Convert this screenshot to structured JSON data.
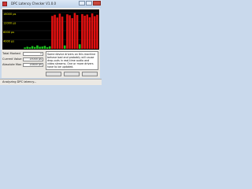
{
  "window": {
    "title": "DPC Latency Checker V1.0.0"
  },
  "chart_data": {
    "type": "bar",
    "ylim": [
      0,
      17000
    ],
    "yticks": [
      {
        "value": 16000,
        "label": "16000 µs"
      },
      {
        "value": 12000,
        "label": "12000 µs"
      },
      {
        "value": 8000,
        "label": "8000 µs"
      },
      {
        "value": 4000,
        "label": "4000 µs"
      }
    ],
    "values": [
      600,
      900,
      700,
      1200,
      800,
      1500,
      900,
      1000,
      1300,
      700,
      1100,
      14500,
      15000,
      13800,
      15500,
      14200,
      1500,
      15200,
      14800,
      13500,
      15800,
      14900,
      2000,
      15300,
      14600,
      15100,
      13900,
      15600,
      14400,
      15000
    ],
    "colors": [
      "#1fbf1f",
      "#1fbf1f",
      "#1fbf1f",
      "#1fbf1f",
      "#1fbf1f",
      "#1fbf1f",
      "#1fbf1f",
      "#1fbf1f",
      "#1fbf1f",
      "#1fbf1f",
      "#1fbf1f",
      "#e01010",
      "#e01010",
      "#e01010",
      "#e01010",
      "#e01010",
      "#1fbf1f",
      "#e01010",
      "#e01010",
      "#e01010",
      "#e01010",
      "#e01010",
      "#1fbf1f",
      "#e01010",
      "#e01010",
      "#e01010",
      "#e01010",
      "#e01010",
      "#e01010",
      "#e01010"
    ],
    "grid": true
  },
  "panel": {
    "rows": [
      [
        "Total Marked",
        "1"
      ],
      [
        "Current Value",
        "15000 µs"
      ],
      [
        "Absolute Max",
        "15800 µs"
      ]
    ],
    "message": "Some device drivers on this machine behave bad and probably will cause drop-outs in real-time audio and video streams. One or more drivers have to be updated.",
    "status": "Analyzing DPC latency..."
  }
}
